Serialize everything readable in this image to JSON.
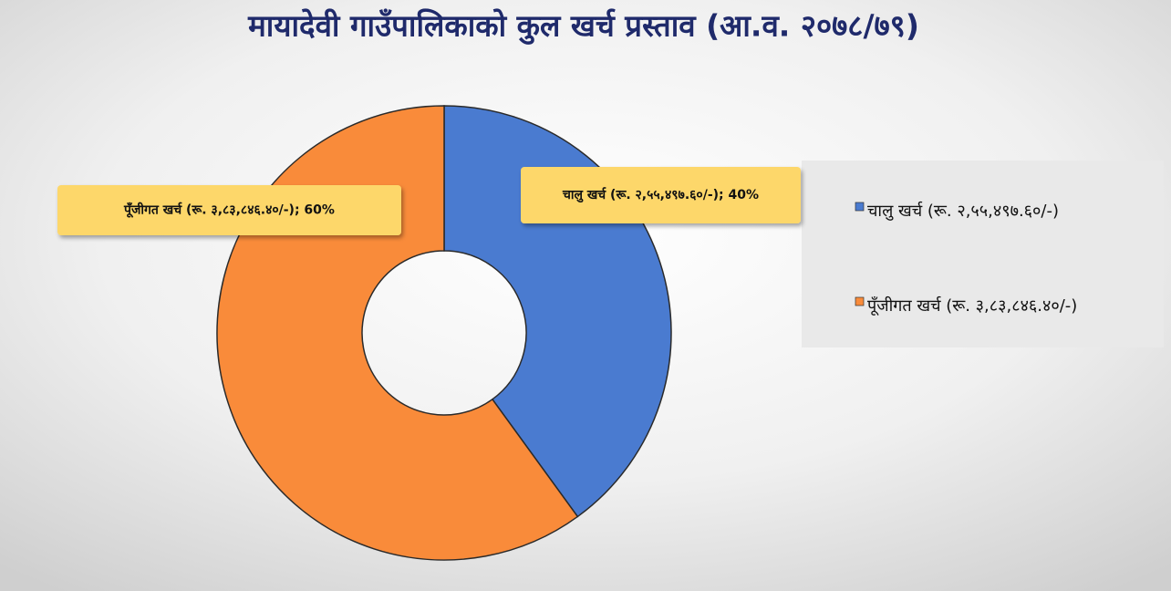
{
  "chart_data": {
    "type": "donut",
    "title": "मायादेवी गाउँपालिकाको कुल खर्च प्रस्ताव (आ.व. २०७८/७९)",
    "categories": [
      "चालु खर्च (रू. २,५५,४९७.६०/-)",
      "पूँजीगत खर्च (रू. ३,८३,८४६.४०/-)"
    ],
    "values": [
      40,
      60
    ],
    "value_labels": [
      "चालु खर्च (रू. २,५५,४९७.६०/-); 40%",
      "पूँजीगत खर्च (रू. ३,८३,८४६.४०/-); 60%"
    ],
    "colors": [
      "#4a7bd0",
      "#f98b3a"
    ],
    "legend": "right"
  }
}
